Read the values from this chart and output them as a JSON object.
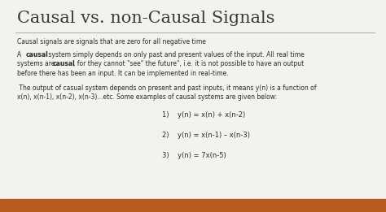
{
  "title": "Causal vs. non-Causal Signals",
  "bg_color": "#f2f2ee",
  "title_color": "#3a3a3a",
  "text_color": "#2a2a2a",
  "line_color": "#aaaaaa",
  "bottom_bar_color": "#b85c20",
  "line1": "Causal signals are signals that are zero for all negative time",
  "para1_line2": "systems are ",
  "para1_rest": ", for they cannot \"see\" the future\", i.e. it is not possible to have an output",
  "para1_line3": "before there has been an input. It can be implemented in real-time.",
  "para2_line1": " The output of casual system depends on present and past inputs, it means y(n) is a function of",
  "para2_line2": "x(n), x(n-1), x(n-2), x(n-3)...etc. Some examples of causal systems are given below:",
  "eq1": "1)    y(n) = x(n) + x(n-2)",
  "eq2": "2)    y(n) = x(n-1) – x(n-3)",
  "eq3": "3)    y(n) = 7x(n-5)",
  "bottom_bar_height": 0.062
}
